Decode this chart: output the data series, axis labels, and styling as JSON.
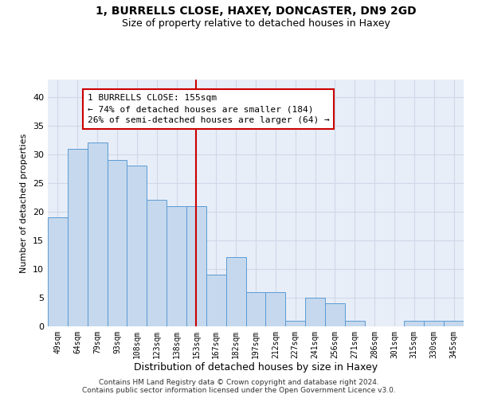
{
  "title1": "1, BURRELLS CLOSE, HAXEY, DONCASTER, DN9 2GD",
  "title2": "Size of property relative to detached houses in Haxey",
  "xlabel": "Distribution of detached houses by size in Haxey",
  "ylabel": "Number of detached properties",
  "categories": [
    "49sqm",
    "64sqm",
    "79sqm",
    "93sqm",
    "108sqm",
    "123sqm",
    "138sqm",
    "153sqm",
    "167sqm",
    "182sqm",
    "197sqm",
    "212sqm",
    "227sqm",
    "241sqm",
    "256sqm",
    "271sqm",
    "286sqm",
    "301sqm",
    "315sqm",
    "330sqm",
    "345sqm"
  ],
  "values": [
    19,
    31,
    32,
    29,
    28,
    22,
    21,
    21,
    9,
    12,
    6,
    6,
    1,
    5,
    4,
    1,
    0,
    0,
    1,
    1,
    1
  ],
  "bar_color": "#c5d8ed",
  "bar_edge_color": "#5b9bd5",
  "vline_x": 7,
  "vline_color": "#cc0000",
  "annotation_text": "1 BURRELLS CLOSE: 155sqm\n← 74% of detached houses are smaller (184)\n26% of semi-detached houses are larger (64) →",
  "annotation_box_color": "white",
  "annotation_box_edge_color": "#cc0000",
  "ylim": [
    0,
    43
  ],
  "yticks": [
    0,
    5,
    10,
    15,
    20,
    25,
    30,
    35,
    40
  ],
  "footer1": "Contains HM Land Registry data © Crown copyright and database right 2024.",
  "footer2": "Contains public sector information licensed under the Open Government Licence v3.0.",
  "grid_color": "#d0d8e8",
  "background_color": "#e8eef8"
}
